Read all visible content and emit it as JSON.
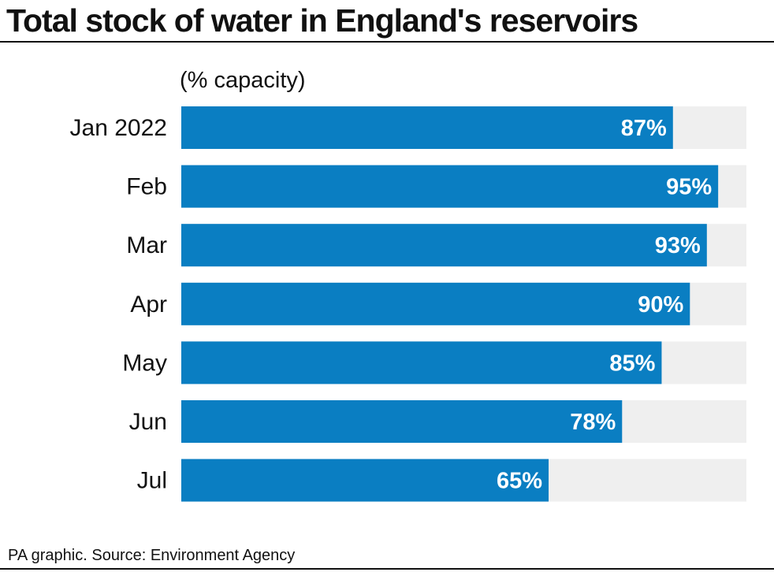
{
  "title": "Total stock of water in England's reservoirs",
  "source": "PA graphic. Source: Environment Agency",
  "colors": {
    "bar": "#0a7ec2",
    "track": "#efefef",
    "text": "#111111"
  },
  "chart_data": {
    "type": "bar",
    "orientation": "horizontal",
    "title": "Total stock of water in England's reservoirs",
    "subtitle": "(% capacity)",
    "categories": [
      "Jan 2022",
      "Feb",
      "Mar",
      "Apr",
      "May",
      "Jun",
      "Jul"
    ],
    "values": [
      87,
      95,
      93,
      90,
      85,
      78,
      65
    ],
    "value_labels": [
      "87%",
      "95%",
      "93%",
      "90%",
      "85%",
      "78%",
      "65%"
    ],
    "xlim": [
      0,
      100
    ],
    "xlabel": "",
    "ylabel": "",
    "grid": false,
    "legend": "none"
  }
}
